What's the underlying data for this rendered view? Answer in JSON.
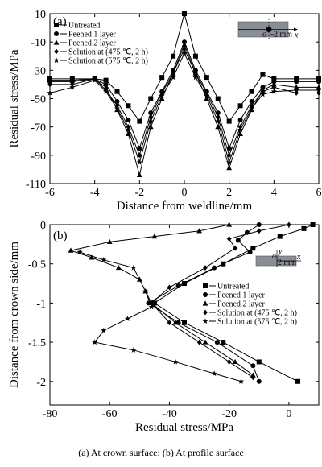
{
  "caption": "(a)  At  crown  surface; (b) At profile surface",
  "chart_data": [
    {
      "type": "line",
      "panel_label": "(a)",
      "xlabel": "Distance from weldline/mm",
      "ylabel": "Residual stress/MPa",
      "xlim": [
        -6,
        6
      ],
      "ylim": [
        -110,
        10
      ],
      "xticks": [
        -6,
        -4,
        -2,
        0,
        2,
        4,
        6
      ],
      "yticks": [
        10,
        -10,
        -30,
        -50,
        -70,
        -90,
        -110
      ],
      "legend_position": "top-left",
      "inset": {
        "labels": [
          "o",
          "x",
          "2 mm"
        ]
      },
      "series": [
        {
          "name": "Untreated",
          "marker": "square",
          "points": [
            [
              -6,
              -36
            ],
            [
              -5,
              -36
            ],
            [
              -4,
              -36
            ],
            [
              -3.5,
              -37
            ],
            [
              -3,
              -45
            ],
            [
              -2.5,
              -55
            ],
            [
              -2,
              -66
            ],
            [
              -1.5,
              -50
            ],
            [
              -1,
              -35
            ],
            [
              -0.5,
              -20
            ],
            [
              0,
              10
            ],
            [
              0.5,
              -20
            ],
            [
              1,
              -35
            ],
            [
              1.5,
              -50
            ],
            [
              2,
              -66
            ],
            [
              2.5,
              -55
            ],
            [
              3,
              -45
            ],
            [
              3.5,
              -33
            ],
            [
              4,
              -36
            ],
            [
              5,
              -36
            ],
            [
              6,
              -36
            ]
          ]
        },
        {
          "name": "Peened 1 layer",
          "marker": "circle",
          "points": [
            [
              -6,
              -38
            ],
            [
              -5,
              -38
            ],
            [
              -4,
              -36
            ],
            [
              -3.5,
              -40
            ],
            [
              -3,
              -52
            ],
            [
              -2.5,
              -65
            ],
            [
              -2,
              -85
            ],
            [
              -1.5,
              -60
            ],
            [
              -1,
              -45
            ],
            [
              -0.5,
              -30
            ],
            [
              0,
              -10
            ],
            [
              0.5,
              -30
            ],
            [
              1,
              -45
            ],
            [
              1.5,
              -60
            ],
            [
              2,
              -85
            ],
            [
              2.5,
              -65
            ],
            [
              3,
              -52
            ],
            [
              3.5,
              -42
            ],
            [
              4,
              -38
            ],
            [
              5,
              -38
            ],
            [
              6,
              -38
            ]
          ]
        },
        {
          "name": "Peened 2 layer",
          "marker": "triangle",
          "points": [
            [
              -6,
              -37
            ],
            [
              -5,
              -37
            ],
            [
              -4,
              -36
            ],
            [
              -3.5,
              -42
            ],
            [
              -3,
              -58
            ],
            [
              -2.5,
              -75
            ],
            [
              -2,
              -104
            ],
            [
              -1.5,
              -70
            ],
            [
              -1,
              -50
            ],
            [
              -0.5,
              -32
            ],
            [
              0,
              -12
            ],
            [
              0.5,
              -32
            ],
            [
              1,
              -50
            ],
            [
              1.5,
              -70
            ],
            [
              2,
              -99
            ],
            [
              2.5,
              -75
            ],
            [
              3,
              -58
            ],
            [
              3.5,
              -44
            ],
            [
              4,
              -40
            ],
            [
              5,
              -42
            ],
            [
              6,
              -42
            ]
          ]
        },
        {
          "name": "Solution at (475 ℃, 2 h)",
          "marker": "diamond",
          "points": [
            [
              -6,
              -40
            ],
            [
              -5,
              -40
            ],
            [
              -4,
              -36
            ],
            [
              -3.5,
              -44
            ],
            [
              -3,
              -55
            ],
            [
              -2.5,
              -70
            ],
            [
              -2,
              -90
            ],
            [
              -1.5,
              -63
            ],
            [
              -1,
              -46
            ],
            [
              -0.5,
              -32
            ],
            [
              0,
              -15
            ],
            [
              0.5,
              -32
            ],
            [
              1,
              -46
            ],
            [
              1.5,
              -63
            ],
            [
              2,
              -90
            ],
            [
              2.5,
              -70
            ],
            [
              3,
              -55
            ],
            [
              3.5,
              -45
            ],
            [
              4,
              -42
            ],
            [
              5,
              -46
            ],
            [
              6,
              -46
            ]
          ]
        },
        {
          "name": "Solution at (575 ℃, 2 h)",
          "marker": "star",
          "points": [
            [
              -6,
              -46
            ],
            [
              -5,
              -42
            ],
            [
              -4,
              -37
            ],
            [
              -3.5,
              -45
            ],
            [
              -3,
              -57
            ],
            [
              -2.5,
              -72
            ],
            [
              -2,
              -95
            ],
            [
              -1.5,
              -66
            ],
            [
              -1,
              -48
            ],
            [
              -0.5,
              -35
            ],
            [
              0,
              -18
            ],
            [
              0.5,
              -35
            ],
            [
              1,
              -48
            ],
            [
              1.5,
              -66
            ],
            [
              2,
              -95
            ],
            [
              2.5,
              -72
            ],
            [
              3,
              -57
            ],
            [
              3.5,
              -47
            ],
            [
              4,
              -45
            ],
            [
              5,
              -44
            ],
            [
              6,
              -44
            ]
          ]
        }
      ]
    },
    {
      "type": "line",
      "panel_label": "(b)",
      "xlabel": "Residual stress/MPa",
      "ylabel": "Distance from crown side/mm",
      "xlim": [
        -80,
        10
      ],
      "ylim": [
        -2.3,
        0
      ],
      "xticks": [
        -80,
        -60,
        -40,
        -20,
        0
      ],
      "yticks": [
        0,
        -0.5,
        -1.0,
        -1.5,
        -2.0
      ],
      "legend_position": "bottom-right",
      "inset": {
        "labels": [
          "o",
          "x",
          "y",
          "2 mm"
        ]
      },
      "series": [
        {
          "name": "Untreated",
          "marker": "square",
          "points": [
            [
              8,
              0
            ],
            [
              5,
              -0.05
            ],
            [
              -3,
              -0.15
            ],
            [
              -12,
              -0.3
            ],
            [
              -22,
              -0.5
            ],
            [
              -35,
              -0.75
            ],
            [
              -45,
              -1.0
            ],
            [
              -35,
              -1.25
            ],
            [
              -22,
              -1.5
            ],
            [
              -10,
              -1.75
            ],
            [
              3,
              -2.0
            ]
          ]
        },
        {
          "name": "Peened 1 layer",
          "marker": "circle",
          "points": [
            [
              -10,
              0
            ],
            [
              -14,
              -0.1
            ],
            [
              -17,
              -0.2
            ],
            [
              -13,
              -0.35
            ],
            [
              -25,
              -0.55
            ],
            [
              -37,
              -0.78
            ],
            [
              -47,
              -1.0
            ],
            [
              -37,
              -1.25
            ],
            [
              -24,
              -1.5
            ],
            [
              -12,
              -1.8
            ],
            [
              -10,
              -2.0
            ]
          ]
        },
        {
          "name": "Peened 2 layer",
          "marker": "triangle",
          "points": [
            [
              -20,
              0
            ],
            [
              -30,
              -0.08
            ],
            [
              -45,
              -0.15
            ],
            [
              -60,
              -0.22
            ],
            [
              -73,
              -0.33
            ],
            [
              -66,
              -0.42
            ],
            [
              -57,
              -0.55
            ],
            [
              -50,
              -0.7
            ],
            [
              -48,
              -0.85
            ],
            [
              -46,
              -1.0
            ],
            [
              -38,
              -1.25
            ],
            [
              -28,
              -1.5
            ],
            [
              -18,
              -1.75
            ],
            [
              -12,
              -1.92
            ]
          ]
        },
        {
          "name": "Solution at (475 ℃, 2 h)",
          "marker": "diamond",
          "points": [
            [
              0,
              0
            ],
            [
              -10,
              -0.08
            ],
            [
              -20,
              -0.18
            ],
            [
              -18,
              -0.3
            ],
            [
              -28,
              -0.55
            ],
            [
              -40,
              -0.8
            ],
            [
              -46,
              -1.0
            ],
            [
              -40,
              -1.25
            ],
            [
              -30,
              -1.5
            ],
            [
              -20,
              -1.75
            ],
            [
              -12,
              -1.95
            ]
          ]
        },
        {
          "name": "Solution at (575 ℃, 2 h)",
          "marker": "star",
          "points": [
            [
              -70,
              -0.35
            ],
            [
              -62,
              -0.45
            ],
            [
              -52,
              -0.55
            ],
            [
              -50,
              -0.7
            ],
            [
              -48,
              -0.85
            ],
            [
              -46,
              -1.05
            ],
            [
              -54,
              -1.2
            ],
            [
              -62,
              -1.35
            ],
            [
              -65,
              -1.5
            ],
            [
              -52,
              -1.6
            ],
            [
              -38,
              -1.75
            ],
            [
              -25,
              -1.9
            ],
            [
              -16,
              -2.0
            ]
          ]
        }
      ]
    }
  ]
}
